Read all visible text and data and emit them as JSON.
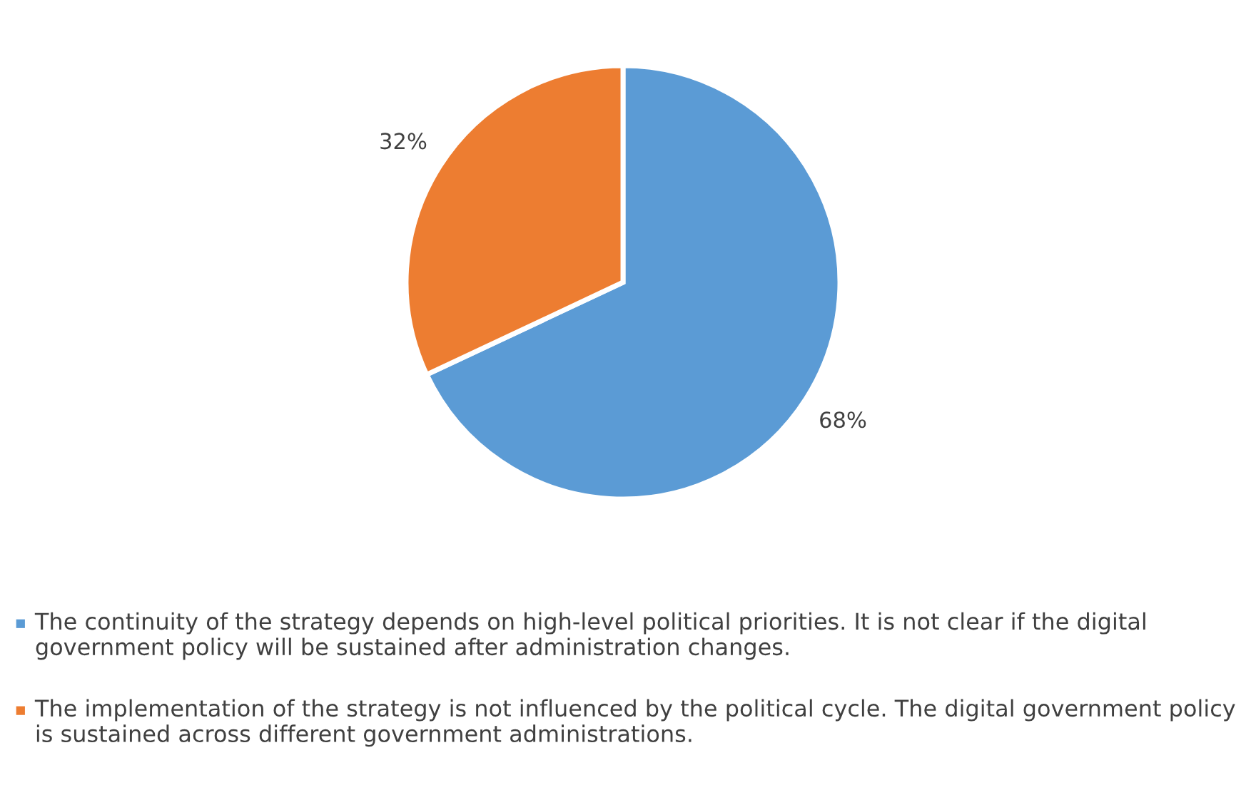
{
  "chart_data": {
    "type": "pie",
    "categories": [
      "The continuity of the strategy depends on high-level political priorities. It is not clear if the digital government policy will be sustained after administration changes.",
      "The implementation of the strategy is not influenced by the political cycle. The digital government policy is sustained across different government administrations."
    ],
    "values": [
      68,
      32
    ],
    "colors": [
      "#5b9bd5",
      "#ed7d31"
    ],
    "value_labels": [
      "68%",
      "32%"
    ],
    "legend": "bottom"
  }
}
